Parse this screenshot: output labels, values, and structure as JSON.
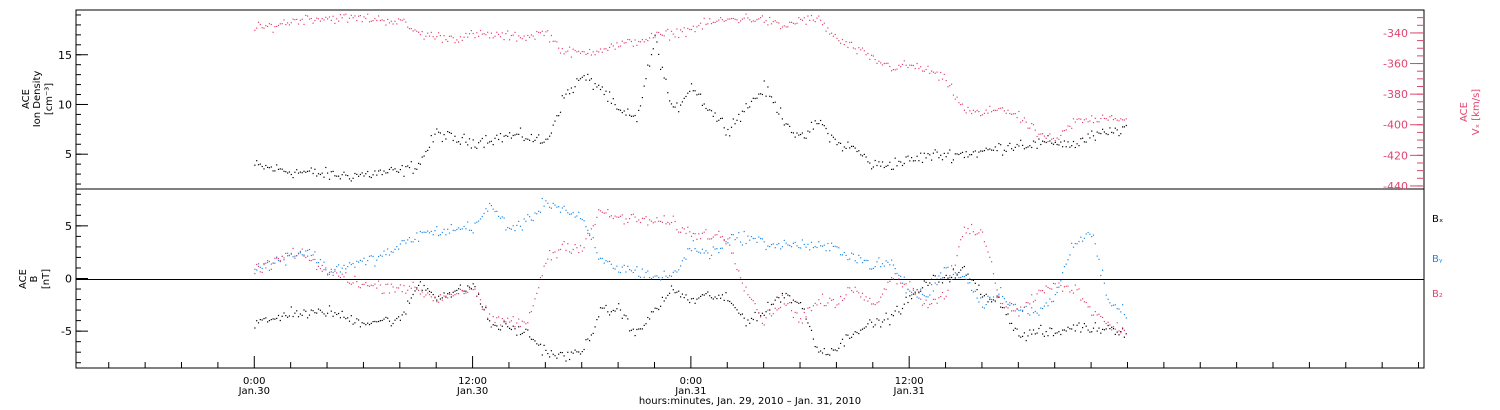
{
  "chart_data": [
    {
      "type": "scatter",
      "panel": "ion-density-and-vx",
      "left_axis": {
        "label_lines": [
          "ACE",
          "Ion Density"
        ],
        "unit": "[cm⁻³]",
        "ylim": [
          1.5,
          19.5
        ],
        "ticks": [
          5,
          10,
          15
        ],
        "tick_labels": [
          "5",
          "10",
          "15"
        ]
      },
      "right_axis": {
        "label_lines": [
          "ACE",
          "Vₓ [km/s]"
        ],
        "ylim": [
          -442,
          -325
        ],
        "ticks": [
          -340,
          -360,
          -380,
          -400,
          -420,
          -440
        ],
        "tick_labels": [
          "-340",
          "-360",
          "-380",
          "-400",
          "-420",
          "-440"
        ],
        "color": "#e0446e"
      },
      "series": [
        {
          "axis": "left",
          "color": "#000000",
          "x_hours": [
            0,
            1,
            2,
            3,
            4,
            5,
            6,
            7,
            8,
            9,
            10,
            11,
            12,
            13,
            14,
            15,
            16,
            17,
            18,
            19,
            20,
            21,
            22,
            23,
            24,
            25,
            26,
            27,
            28,
            29,
            30,
            31,
            32,
            33,
            34,
            35,
            36,
            37,
            38,
            39,
            40,
            41,
            42,
            43,
            44,
            45,
            46,
            47,
            48
          ],
          "values": [
            3.9,
            3.6,
            3.3,
            3.2,
            3.0,
            2.9,
            3.0,
            3.2,
            3.3,
            4.0,
            7.2,
            6.5,
            6.3,
            6.6,
            6.9,
            6.8,
            6.2,
            10.8,
            12.8,
            11.8,
            9.3,
            8.6,
            16.6,
            9.1,
            12.0,
            9.5,
            7.6,
            9.7,
            11.7,
            8.9,
            6.4,
            8.4,
            6.1,
            5.6,
            3.9,
            4.1,
            4.4,
            4.9,
            5.0,
            5.1,
            5.3,
            5.7,
            6.1,
            6.0,
            6.3,
            6.0,
            6.8,
            7.2,
            7.8
          ]
        },
        {
          "axis": "right",
          "color": "#e0446e",
          "x_hours": [
            0,
            1,
            2,
            3,
            4,
            5,
            6,
            7,
            8,
            9,
            10,
            11,
            12,
            13,
            14,
            15,
            16,
            17,
            18,
            19,
            20,
            21,
            22,
            23,
            24,
            25,
            26,
            27,
            28,
            29,
            30,
            31,
            32,
            33,
            34,
            35,
            36,
            37,
            38,
            39,
            40,
            41,
            42,
            43,
            44,
            45,
            46,
            47,
            48
          ],
          "values": [
            -337,
            -335,
            -332,
            -330,
            -330,
            -330,
            -330,
            -331,
            -332,
            -340,
            -342,
            -343,
            -341,
            -341,
            -342,
            -342,
            -339,
            -352,
            -353,
            -350,
            -348,
            -345,
            -342,
            -340,
            -337,
            -333,
            -331,
            -330,
            -331,
            -336,
            -331,
            -331,
            -344,
            -350,
            -357,
            -362,
            -361,
            -364,
            -371,
            -390,
            -393,
            -388,
            -395,
            -405,
            -411,
            -398,
            -396,
            -394,
            -397
          ]
        }
      ]
    },
    {
      "type": "scatter",
      "panel": "imf-components",
      "left_axis": {
        "label_lines": [
          "ACE",
          "B"
        ],
        "unit": "[nT]",
        "ylim": [
          -8.5,
          8.5
        ],
        "ticks": [
          -5,
          0,
          5
        ],
        "tick_labels": [
          "-5",
          "0",
          "5"
        ]
      },
      "legend": [
        "Bₓ",
        "Bᵧ",
        "B₂"
      ],
      "series": [
        {
          "name": "Bx",
          "color": "#000000",
          "x_hours": [
            0,
            1,
            2,
            3,
            4,
            5,
            6,
            7,
            8,
            9,
            10,
            11,
            12,
            13,
            14,
            15,
            16,
            17,
            18,
            19,
            20,
            21,
            22,
            23,
            24,
            25,
            26,
            27,
            28,
            29,
            30,
            31,
            32,
            33,
            34,
            35,
            36,
            37,
            38,
            39,
            40,
            41,
            42,
            43,
            44,
            45,
            46,
            47,
            48
          ],
          "values": [
            -4.2,
            -3.9,
            -3.1,
            -3.4,
            -3.0,
            -3.7,
            -4.1,
            -3.9,
            -4.0,
            -0.4,
            -1.6,
            -1.3,
            -0.6,
            -4.4,
            -4.6,
            -5.2,
            -6.9,
            -7.4,
            -6.9,
            -3.2,
            -2.8,
            -5.3,
            -2.9,
            -1.0,
            -2.1,
            -1.5,
            -2.0,
            -3.9,
            -3.2,
            -1.4,
            -2.3,
            -6.9,
            -6.6,
            -4.8,
            -4.3,
            -3.6,
            -1.9,
            -0.3,
            0.2,
            0.8,
            -1.5,
            -2.1,
            -5.5,
            -5.0,
            -5.2,
            -4.5,
            -4.7,
            -4.6,
            -5.1
          ]
        },
        {
          "name": "By",
          "color": "#1e88e5",
          "x_hours": [
            0,
            1,
            2,
            3,
            4,
            5,
            6,
            7,
            8,
            9,
            10,
            11,
            12,
            13,
            14,
            15,
            16,
            17,
            18,
            19,
            20,
            21,
            22,
            23,
            24,
            25,
            26,
            27,
            28,
            29,
            30,
            31,
            32,
            33,
            34,
            35,
            36,
            37,
            38,
            39,
            40,
            41,
            42,
            43,
            44,
            45,
            46,
            47,
            48
          ],
          "values": [
            1.0,
            1.5,
            2.3,
            2.7,
            0.7,
            1.3,
            1.6,
            2.2,
            3.1,
            4.2,
            4.5,
            4.7,
            5.0,
            6.9,
            4.8,
            5.4,
            7.4,
            6.6,
            5.6,
            1.8,
            1.0,
            0.8,
            0.2,
            0.3,
            3.1,
            2.3,
            3.8,
            4.0,
            3.4,
            3.2,
            3.3,
            3.0,
            2.9,
            2.1,
            1.3,
            1.5,
            -1.3,
            -1.6,
            1.1,
            0.2,
            -2.3,
            -1.3,
            -2.9,
            -3.3,
            -1.7,
            3.6,
            4.4,
            -2.7,
            -3.1
          ]
        },
        {
          "name": "Bz",
          "color": "#e0446e",
          "x_hours": [
            0,
            1,
            2,
            3,
            4,
            5,
            6,
            7,
            8,
            9,
            10,
            11,
            12,
            13,
            14,
            15,
            16,
            17,
            18,
            19,
            20,
            21,
            22,
            23,
            24,
            25,
            26,
            27,
            28,
            29,
            30,
            31,
            32,
            33,
            34,
            35,
            36,
            37,
            38,
            39,
            40,
            41,
            42,
            43,
            44,
            45,
            46,
            47,
            48
          ],
          "values": [
            0.6,
            1.6,
            2.4,
            2.0,
            0.6,
            0.2,
            -0.6,
            -0.7,
            -0.7,
            -1.1,
            -1.9,
            -1.3,
            -0.9,
            -4.2,
            -3.9,
            -4.3,
            1.8,
            3.2,
            3.0,
            6.4,
            5.8,
            5.6,
            5.5,
            5.3,
            4.2,
            4.3,
            3.8,
            -0.9,
            -4.0,
            -2.0,
            -3.8,
            -2.1,
            -2.4,
            -0.6,
            -2.6,
            0.3,
            -0.7,
            -2.4,
            -1.3,
            4.5,
            4.4,
            -2.1,
            -3.2,
            -1.4,
            -0.7,
            -0.8,
            -2.8,
            -4.4,
            -4.9
          ]
        }
      ]
    }
  ],
  "x_axis": {
    "title": "hours:minutes, Jan. 29, 2010 – Jan. 31, 2010",
    "range_hours": [
      -9.8,
      64.3
    ],
    "major_ticks": [
      {
        "hour": 0,
        "time": "0:00",
        "date": "Jan.30"
      },
      {
        "hour": 12,
        "time": "12:00",
        "date": "Jan.30"
      },
      {
        "hour": 24,
        "time": "0:00",
        "date": "Jan.31"
      },
      {
        "hour": 36,
        "time": "12:00",
        "date": "Jan.31"
      }
    ],
    "minor_tick_step_hours": 2
  }
}
